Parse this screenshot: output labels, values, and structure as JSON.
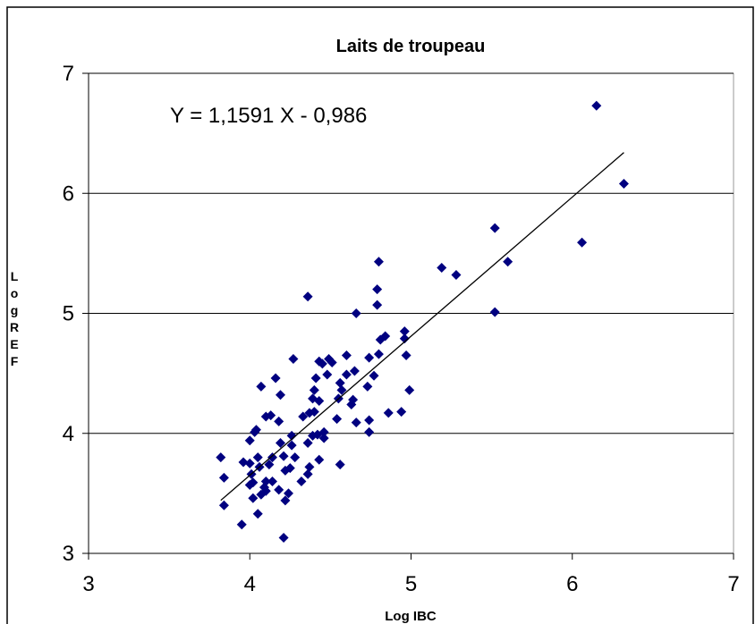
{
  "chart_data": {
    "type": "scatter",
    "title": "Laits de troupeau",
    "xlabel": "Log IBC",
    "ylabel": "Log REF",
    "annotation": "Y = 1,1591 X - 0,986",
    "trendline": {
      "slope": 1.1591,
      "intercept": -0.986,
      "x_range": [
        3.82,
        6.32
      ]
    },
    "xlim": [
      3,
      7
    ],
    "ylim": [
      3,
      7
    ],
    "xticks": [
      3,
      4,
      5,
      6,
      7
    ],
    "yticks": [
      3,
      4,
      5,
      6,
      7
    ],
    "grid": true,
    "series": [
      {
        "color": "#000080",
        "x": [
          6.15,
          6.32,
          5.52,
          6.06,
          5.6,
          5.19,
          5.28,
          5.52,
          4.8,
          4.36,
          4.79,
          4.79,
          4.66,
          4.96,
          4.96,
          4.97,
          4.99,
          4.94,
          4.86,
          4.81,
          4.84,
          4.8,
          4.77,
          4.74,
          4.73,
          4.74,
          4.74,
          4.65,
          4.64,
          4.66,
          4.63,
          4.6,
          4.6,
          4.56,
          4.57,
          4.55,
          4.54,
          4.56,
          4.48,
          4.51,
          4.49,
          4.45,
          4.43,
          4.41,
          4.43,
          4.46,
          4.46,
          4.42,
          4.43,
          4.36,
          4.36,
          4.37,
          4.39,
          4.4,
          4.37,
          4.39,
          4.4,
          4.33,
          4.32,
          4.27,
          4.26,
          4.26,
          4.28,
          4.25,
          4.24,
          4.21,
          4.22,
          4.19,
          4.18,
          4.19,
          4.21,
          4.22,
          4.14,
          4.16,
          4.13,
          4.14,
          4.18,
          4.1,
          4.09,
          4.07,
          4.1,
          4.12,
          4.03,
          4.04,
          4.0,
          4.1,
          4.07,
          4.05,
          4.0,
          4.01,
          3.96,
          4.0,
          4.02,
          4.05,
          3.95,
          3.84,
          3.84,
          3.82,
          4.02,
          4.06
        ],
        "y": [
          6.73,
          6.08,
          5.71,
          5.59,
          5.43,
          5.38,
          5.32,
          5.01,
          5.43,
          5.14,
          5.2,
          5.07,
          5.0,
          4.85,
          4.79,
          4.65,
          4.36,
          4.18,
          4.17,
          4.78,
          4.81,
          4.66,
          4.48,
          4.63,
          4.39,
          4.11,
          4.01,
          4.52,
          4.28,
          4.09,
          4.24,
          4.65,
          4.49,
          4.42,
          4.36,
          4.29,
          4.12,
          3.74,
          4.49,
          4.59,
          4.62,
          4.58,
          4.6,
          4.46,
          4.27,
          4.01,
          3.96,
          3.99,
          3.78,
          3.92,
          3.66,
          3.72,
          3.98,
          4.18,
          4.17,
          4.29,
          4.36,
          4.14,
          3.6,
          4.62,
          3.98,
          3.9,
          3.8,
          3.71,
          3.5,
          3.13,
          3.44,
          4.32,
          4.1,
          3.92,
          3.81,
          3.69,
          3.6,
          4.46,
          4.15,
          3.8,
          3.53,
          3.52,
          3.55,
          3.49,
          3.6,
          3.74,
          4.01,
          4.03,
          3.94,
          4.14,
          4.39,
          3.8,
          3.75,
          3.66,
          3.76,
          3.57,
          3.46,
          3.33,
          3.24,
          3.4,
          3.63,
          3.8,
          3.59,
          3.72
        ]
      }
    ]
  }
}
